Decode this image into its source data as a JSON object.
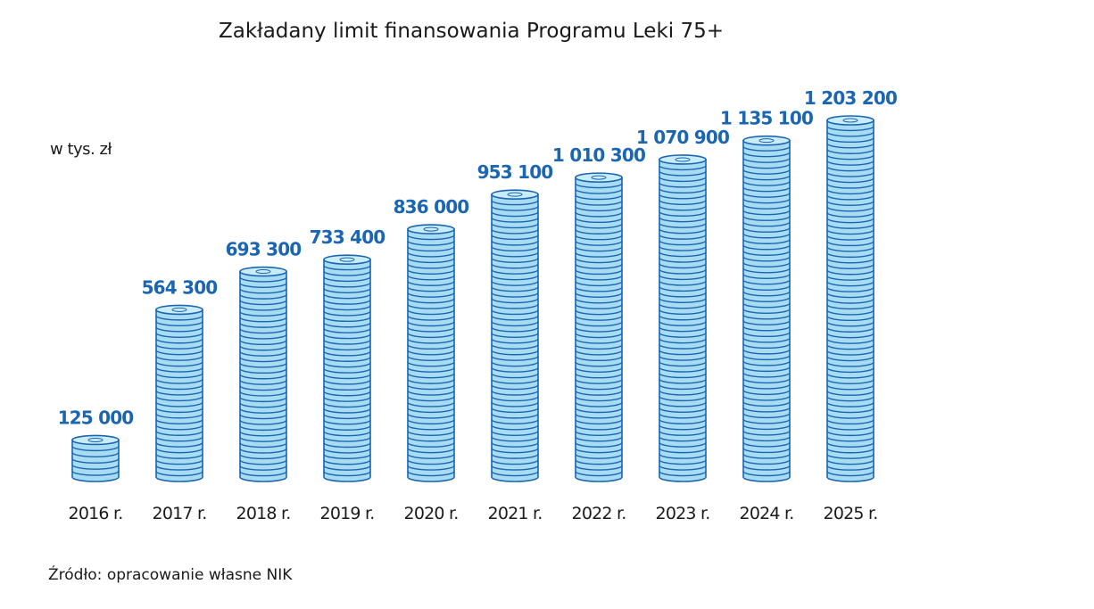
{
  "colors": {
    "coin_fill": "#a7dcf2",
    "coin_top": "#c9ecf9",
    "coin_stroke": "#1b66b3",
    "value_label": "#1b66b3",
    "text": "#1a1a1a"
  },
  "chart_data": {
    "type": "bar",
    "title": "Zakładany limit finansowania Programu Leki 75+",
    "ylabel": "w tys. zł",
    "source": "Źródło: opracowanie własne NIK",
    "categories": [
      "2016 r.",
      "2017 r.",
      "2018 r.",
      "2019 r.",
      "2020 r.",
      "2021 r.",
      "2022 r.",
      "2023 r.",
      "2024 r.",
      "2025 r."
    ],
    "values": [
      125000,
      564300,
      693300,
      733400,
      836000,
      953100,
      1010300,
      1070900,
      1135100,
      1203200
    ],
    "value_labels": [
      "125 000",
      "564 300",
      "693 300",
      "733 400",
      "836 000",
      "953 100",
      "1 010 300",
      "1 070 900",
      "1 135 100",
      "1 203 200"
    ],
    "ylim": [
      0,
      1203200
    ],
    "grid": false,
    "legend": "none",
    "style": "coin stacks"
  }
}
